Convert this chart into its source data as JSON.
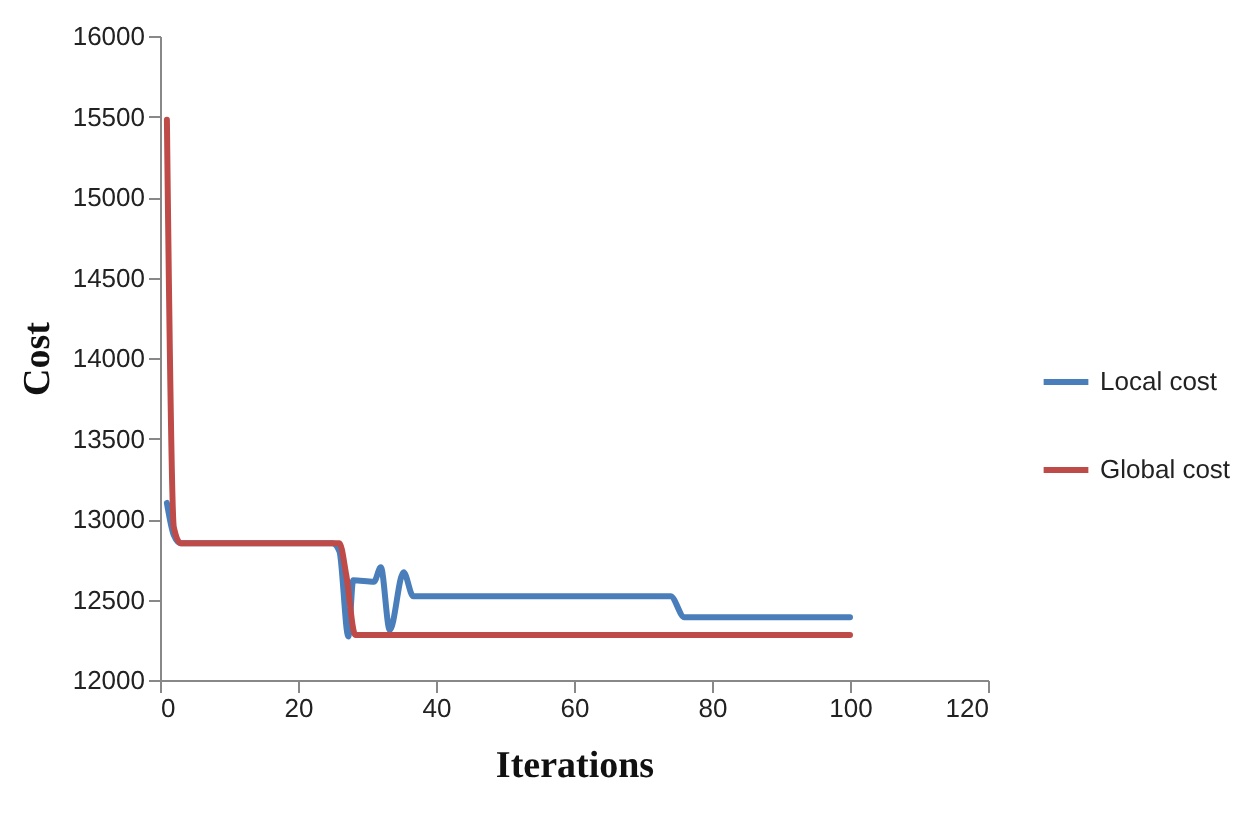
{
  "chart_data": {
    "type": "line",
    "xlabel": "Iterations",
    "ylabel": "Cost",
    "xlim": [
      0,
      120
    ],
    "xticks": [
      0,
      20,
      40,
      60,
      80,
      100,
      120
    ],
    "ylim": [
      12000,
      16000
    ],
    "yticks": [
      12000,
      12500,
      13000,
      13500,
      14000,
      14500,
      15000,
      15500,
      16000
    ],
    "grid": false,
    "legend": "right",
    "marker": "none",
    "line_style": "solid",
    "series": [
      {
        "name": "Local cost",
        "color": "#4a7ebb",
        "x": [
          1,
          2,
          3,
          25,
          26,
          27.3,
          28,
          31,
          32,
          33.3,
          35.3,
          36.7,
          74,
          76,
          100
        ],
        "values": [
          13100,
          12900,
          12850,
          12850,
          12800,
          12270,
          12620,
          12610,
          12700,
          12310,
          12670,
          12520,
          12520,
          12390,
          12390
        ]
      },
      {
        "name": "Global cost",
        "color": "#be4b48",
        "x": [
          1,
          2,
          3,
          26,
          27,
          28.3,
          100
        ],
        "values": [
          15480,
          12950,
          12850,
          12850,
          12650,
          12280,
          12280
        ]
      }
    ]
  }
}
